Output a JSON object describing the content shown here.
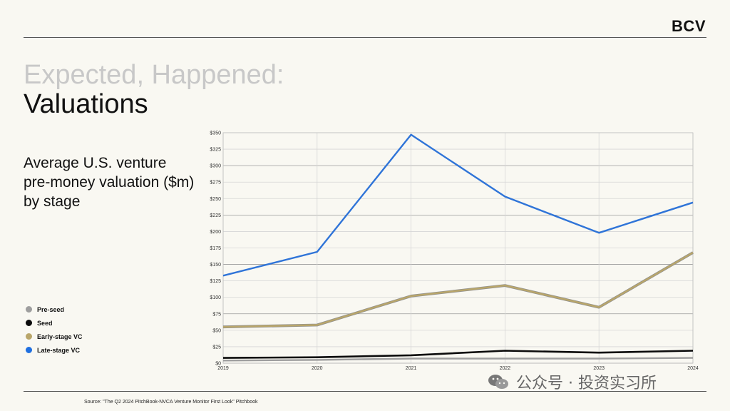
{
  "brand": "BCV",
  "title_line1": "Expected, Happened:",
  "title_line2": "Valuations",
  "subtitle": "Average U.S. venture pre-money valuation ($m) by stage",
  "source": "Source: \"The Q2 2024 PitchBook-NVCA Venture Monitor First Look\" Pitchbook",
  "watermark": "公众号 · 投资实习所",
  "chart_data": {
    "type": "line",
    "x": [
      "2019",
      "2020",
      "2021",
      "2022",
      "2023",
      "2024"
    ],
    "ylim": [
      0,
      350
    ],
    "yticks": [
      0,
      25,
      50,
      75,
      100,
      125,
      150,
      175,
      200,
      225,
      250,
      275,
      300,
      325,
      350
    ],
    "ytick_labels": [
      "$0",
      "$25",
      "$50",
      "$75",
      "$100",
      "$125",
      "$150",
      "$175",
      "$200",
      "$225",
      "$250",
      "$275",
      "$300",
      "$325",
      "$350"
    ],
    "grid": true,
    "legend_position": "left",
    "series": [
      {
        "name": "Pre-seed",
        "color": "#9e9e9e",
        "values": [
          4,
          5,
          7,
          7,
          7,
          8
        ]
      },
      {
        "name": "Seed",
        "color": "#0b0b0b",
        "values": [
          8,
          9,
          12,
          19,
          16,
          19
        ]
      },
      {
        "name": "Early-stage VC",
        "color": "#b9a66a",
        "values": [
          55,
          58,
          102,
          118,
          85,
          168
        ]
      },
      {
        "name": "Late-stage VC",
        "color": "#2f74d8",
        "values": [
          133,
          169,
          347,
          253,
          198,
          244
        ]
      }
    ]
  }
}
